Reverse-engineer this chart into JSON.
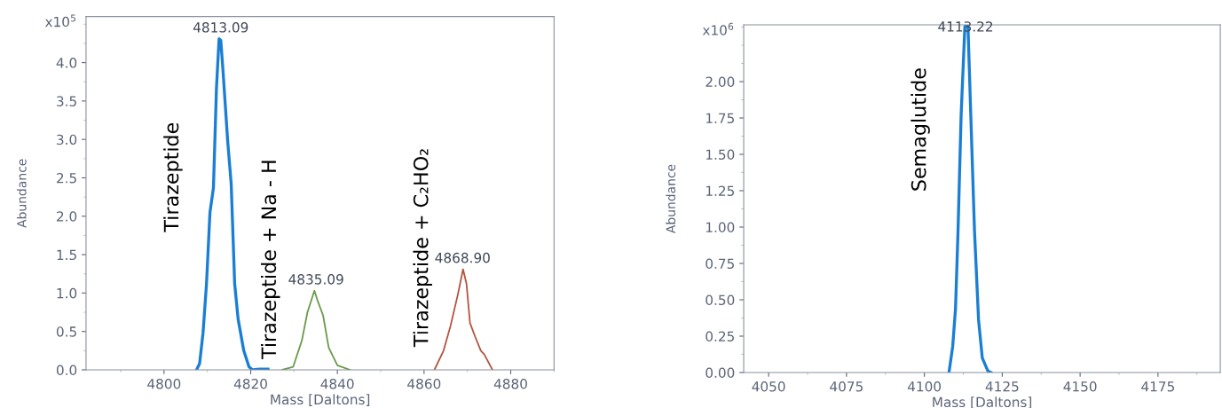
{
  "chart_data": [
    {
      "type": "line",
      "xlabel": "Mass [Daltons]",
      "ylabel": "Abundance",
      "xlim": [
        4782,
        4890
      ],
      "xticks": [
        4800,
        4820,
        4840,
        4860,
        4880
      ],
      "ylim": [
        0,
        4.6
      ],
      "yticks": [
        {
          "value": 0,
          "label": "0.0"
        },
        {
          "value": 0.5,
          "label": "0.5"
        },
        {
          "value": 1,
          "label": "1.0"
        },
        {
          "value": 1.5,
          "label": "1.5"
        },
        {
          "value": 2,
          "label": "2.0"
        },
        {
          "value": 2.5,
          "label": "2.5"
        },
        {
          "value": 3,
          "label": "3.0"
        },
        {
          "value": 3.5,
          "label": "3.5"
        },
        {
          "value": 4,
          "label": "4.0"
        }
      ],
      "grid": false,
      "legend": false,
      "series": [
        {
          "name": "Tirazeptide",
          "color": "#1a7fd4",
          "x": [
            4807.5,
            4808.2,
            4809.0,
            4809.8,
            4810.6,
            4811.4,
            4812.1,
            4812.7,
            4813.1,
            4813.6,
            4814.7,
            4815.5,
            4816.3,
            4817.1,
            4818.4,
            4819.6,
            4820.4,
            4822.0,
            4824.0
          ],
          "values": [
            0.0,
            0.08,
            0.48,
            1.12,
            2.05,
            2.37,
            3.67,
            4.31,
            4.29,
            3.9,
            2.97,
            2.42,
            1.12,
            0.66,
            0.25,
            0.04,
            0.0,
            0.01,
            0.01
          ]
        },
        {
          "name": "Tirazeptide + Na - H",
          "color": "#6a9a4a",
          "x": [
            4827.3,
            4829.8,
            4831.8,
            4833.1,
            4834.7,
            4835.5,
            4836.7,
            4838.0,
            4840.0,
            4842.9
          ],
          "values": [
            0.0,
            0.04,
            0.38,
            0.75,
            1.03,
            0.89,
            0.71,
            0.29,
            0.06,
            0.0
          ]
        },
        {
          "name": "Tirazeptide + C₂HO₂",
          "color": "#b5533f",
          "x": [
            4862.4,
            4864.5,
            4866.1,
            4867.8,
            4869.0,
            4869.8,
            4870.6,
            4871.8,
            4873.1,
            4873.9,
            4875.8
          ],
          "values": [
            0.0,
            0.25,
            0.57,
            0.98,
            1.31,
            1.12,
            0.61,
            0.43,
            0.25,
            0.2,
            0.0
          ]
        }
      ],
      "annotations": [
        "x10$^{5}$",
        {
          "text": "4813.09",
          "x": 4813.09,
          "y": 4.31
        },
        {
          "text": "4835.09",
          "x": 4835.09,
          "y": 1.03
        },
        {
          "text": "4868.90",
          "x": 4868.9,
          "y": 1.31
        }
      ]
    },
    {
      "type": "line",
      "xlabel": "Mass [Daltons]",
      "ylabel": "Abundance",
      "xlim": [
        4042,
        4195
      ],
      "xticks": [
        4050,
        4075,
        4100,
        4125,
        4150,
        4175
      ],
      "ylim": [
        0,
        2.39
      ],
      "yticks": [
        {
          "value": 0,
          "label": "0.00"
        },
        {
          "value": 0.25,
          "label": "0.25"
        },
        {
          "value": 0.5,
          "label": "0.50"
        },
        {
          "value": 0.75,
          "label": "0.75"
        },
        {
          "value": 1,
          "label": "1.00"
        },
        {
          "value": 1.25,
          "label": "1.25"
        },
        {
          "value": 1.5,
          "label": "1.50"
        },
        {
          "value": 1.75,
          "label": "1.75"
        },
        {
          "value": 2,
          "label": "2.00"
        }
      ],
      "grid": false,
      "legend": false,
      "series": [
        {
          "name": "Semaglutide",
          "color": "#1a7fd4",
          "x": [
            4107.9,
            4109.1,
            4110.0,
            4110.8,
            4111.8,
            4113.0,
            4114.0,
            4114.9,
            4116.1,
            4117.4,
            4118.6,
            4120.4,
            4121.4
          ],
          "values": [
            0.0,
            0.18,
            0.44,
            0.97,
            1.77,
            2.38,
            2.38,
            1.77,
            0.97,
            0.36,
            0.1,
            0.01,
            0.0
          ]
        }
      ],
      "annotations": [
        "x10$^{6}$",
        {
          "text": "4113.22",
          "x": 4113.22,
          "y": 2.3
        }
      ]
    }
  ]
}
